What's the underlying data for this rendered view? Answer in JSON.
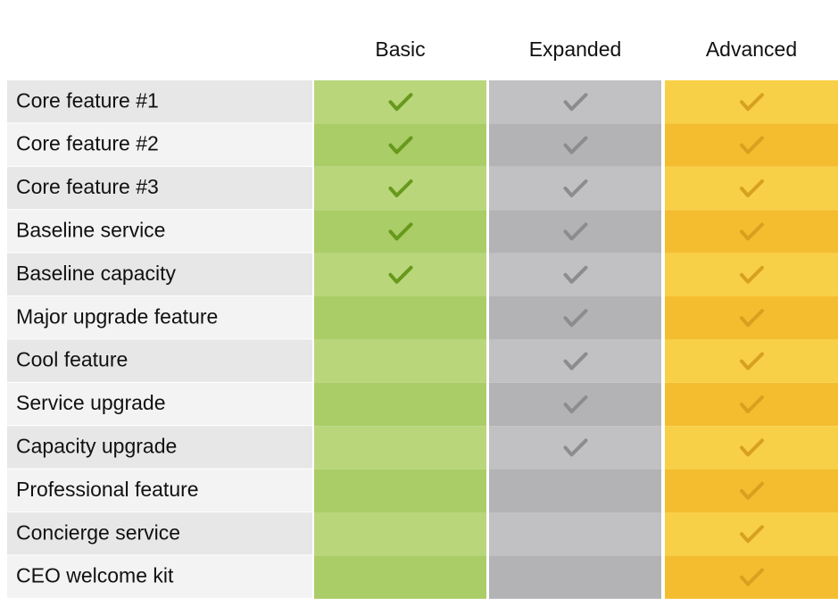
{
  "columns": [
    "Basic",
    "Expanded",
    "Advanced"
  ],
  "rows": [
    {
      "label": "Core feature #1",
      "checks": [
        true,
        true,
        true
      ]
    },
    {
      "label": "Core feature #2",
      "checks": [
        true,
        true,
        true
      ]
    },
    {
      "label": "Core feature #3",
      "checks": [
        true,
        true,
        true
      ]
    },
    {
      "label": "Baseline service",
      "checks": [
        true,
        true,
        true
      ]
    },
    {
      "label": "Baseline capacity",
      "checks": [
        true,
        true,
        true
      ]
    },
    {
      "label": "Major upgrade feature",
      "checks": [
        false,
        true,
        true
      ]
    },
    {
      "label": "Cool feature",
      "checks": [
        false,
        true,
        true
      ]
    },
    {
      "label": "Service upgrade",
      "checks": [
        false,
        true,
        true
      ]
    },
    {
      "label": "Capacity upgrade",
      "checks": [
        false,
        true,
        true
      ]
    },
    {
      "label": "Professional feature",
      "checks": [
        false,
        false,
        true
      ]
    },
    {
      "label": "Concierge service",
      "checks": [
        false,
        false,
        true
      ]
    },
    {
      "label": "CEO welcome kit",
      "checks": [
        false,
        false,
        true
      ]
    }
  ]
}
